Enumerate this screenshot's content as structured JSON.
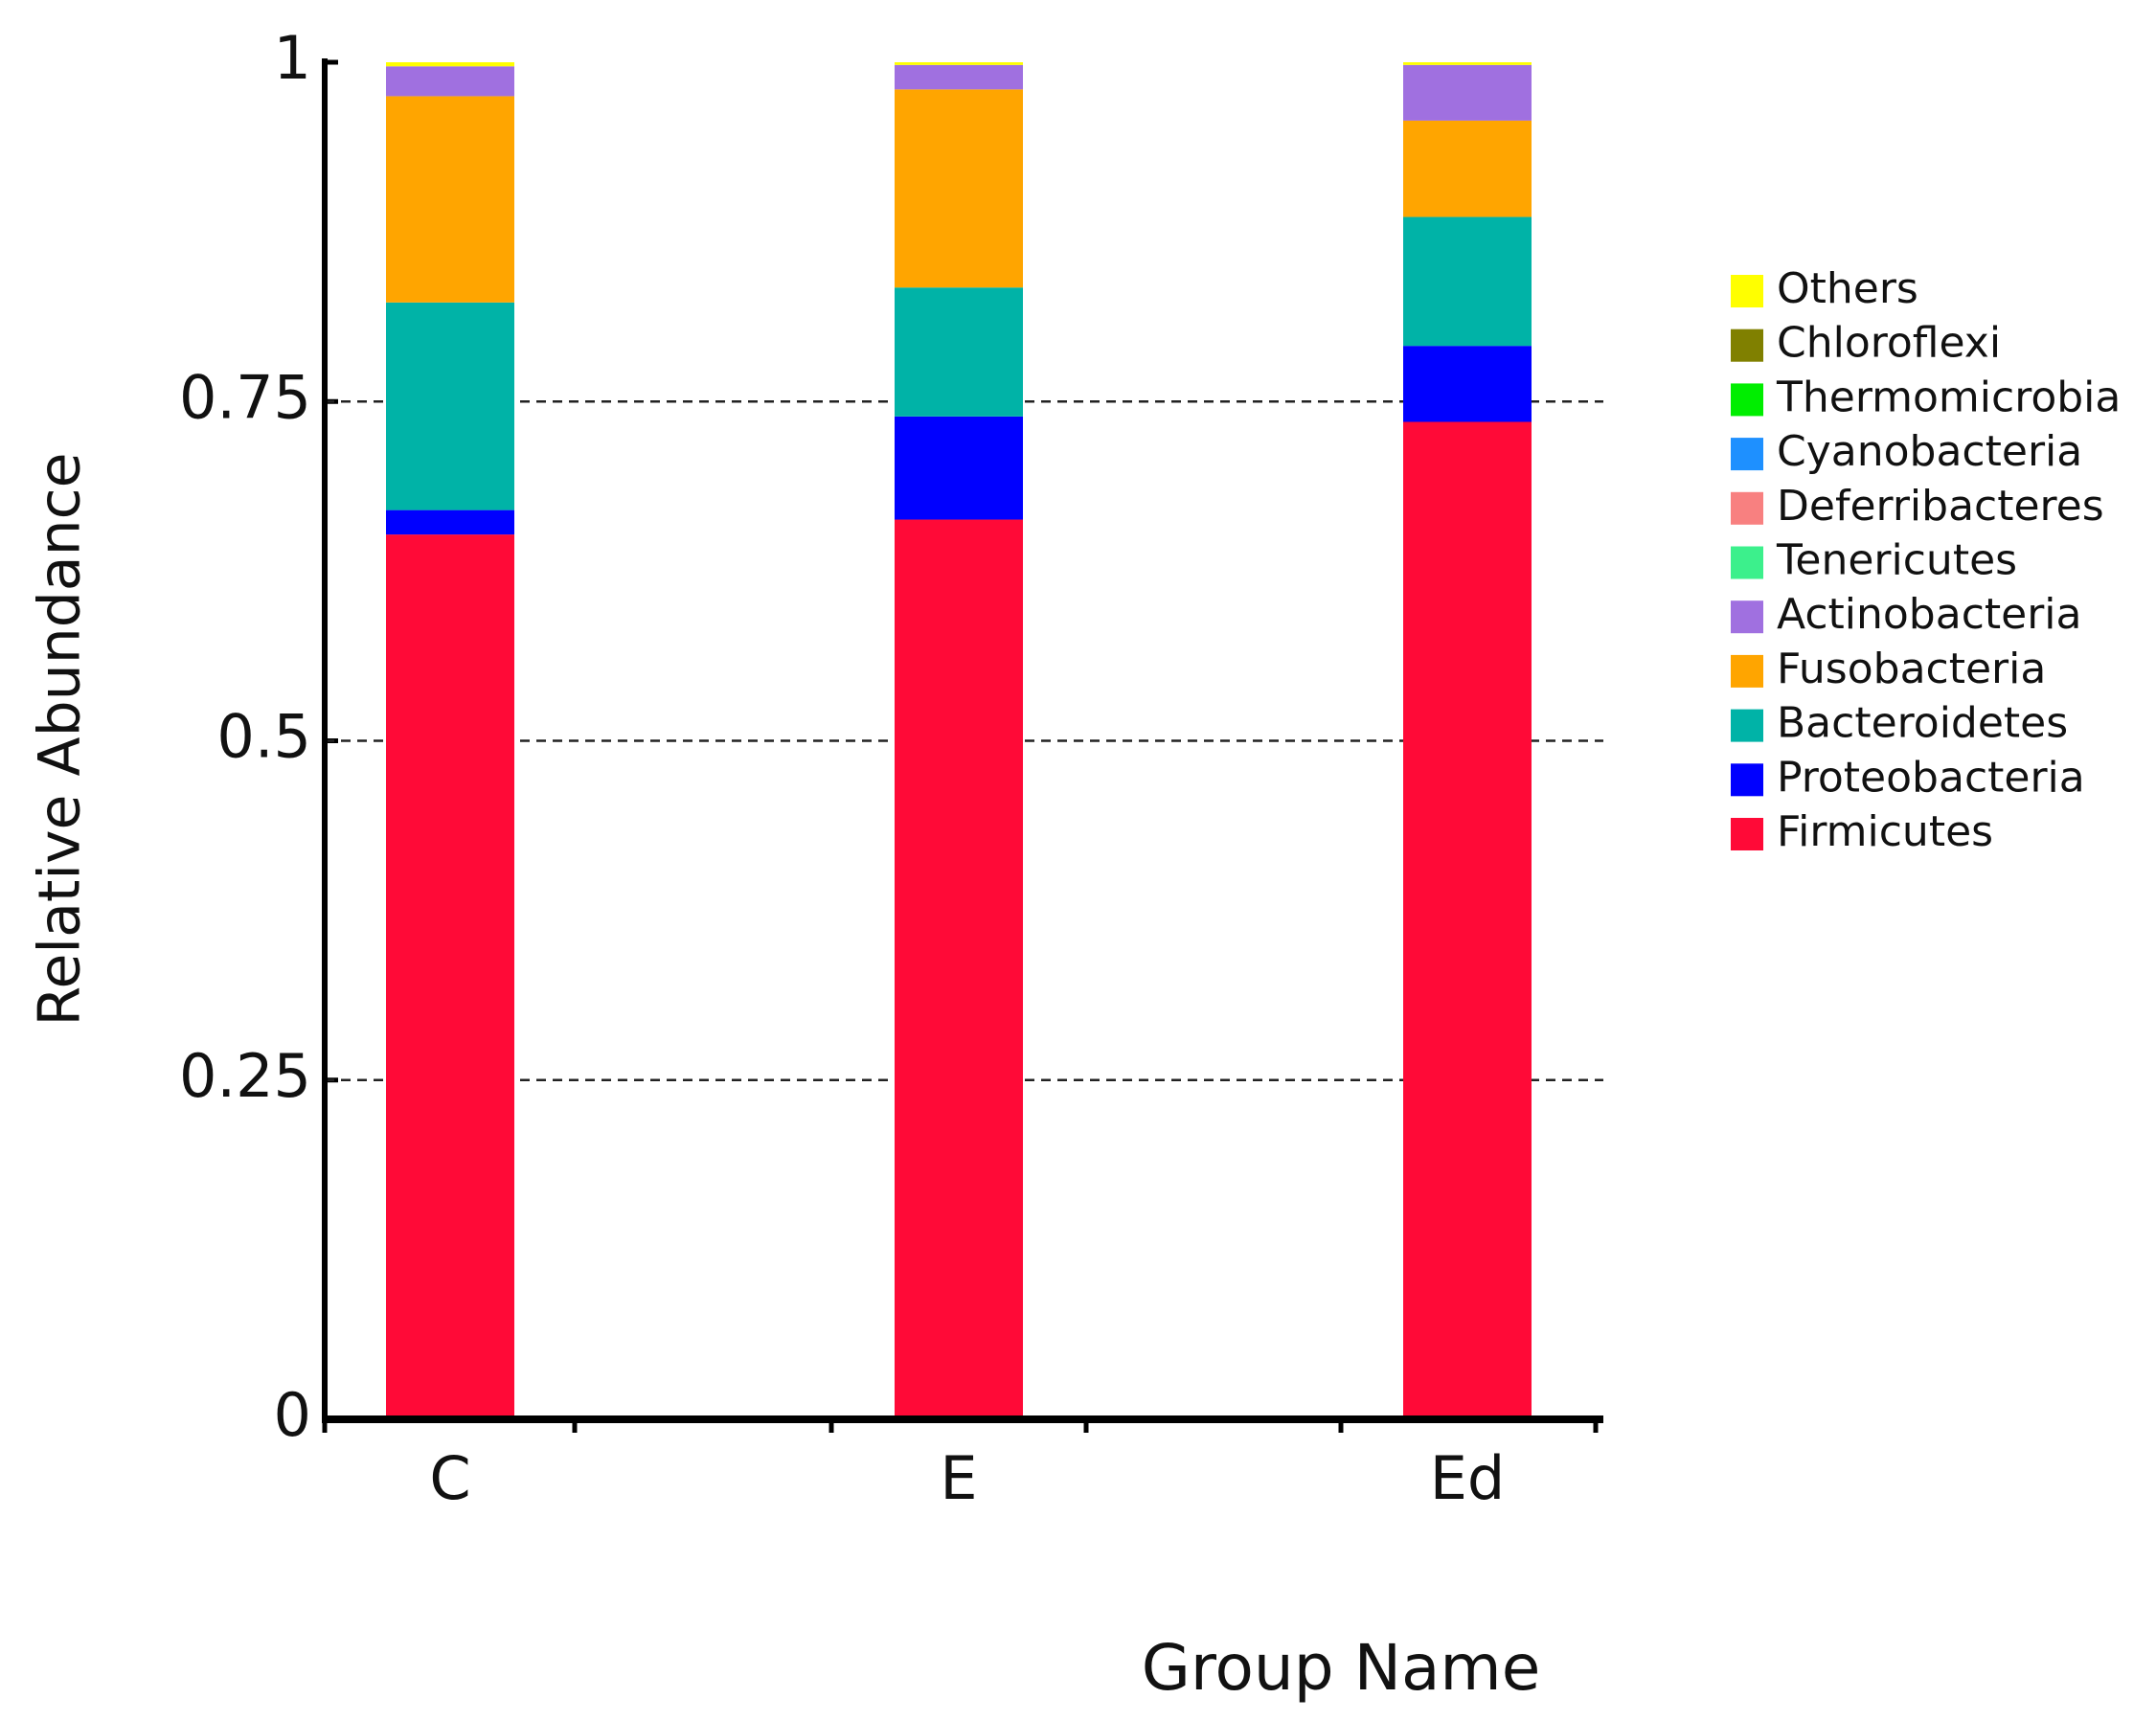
{
  "chart_data": {
    "type": "stacked_bar",
    "x_label": "Group Name",
    "y_label": "Relative Abundance",
    "categories": [
      "C",
      "E",
      "Ed"
    ],
    "series": [
      {
        "name": "Firmicutes",
        "color": "#ff0a37",
        "values": [
          0.652,
          0.663,
          0.735
        ]
      },
      {
        "name": "Proteobacteria",
        "color": "#0000ff",
        "values": [
          0.018,
          0.076,
          0.056
        ]
      },
      {
        "name": "Bacteroidetes",
        "color": "#00b3a7",
        "values": [
          0.153,
          0.095,
          0.095
        ]
      },
      {
        "name": "Fusobacteria",
        "color": "#ffa500",
        "values": [
          0.152,
          0.146,
          0.071
        ]
      },
      {
        "name": "Actinobacteria",
        "color": "#a070e0",
        "values": [
          0.022,
          0.018,
          0.041
        ]
      },
      {
        "name": "Tenericutes",
        "color": "#3cf08c",
        "values": [
          0,
          0,
          0
        ]
      },
      {
        "name": "Deferribacteres",
        "color": "#f88080",
        "values": [
          0,
          0,
          0
        ]
      },
      {
        "name": "Cyanobacteria",
        "color": "#1e90ff",
        "values": [
          0,
          0,
          0
        ]
      },
      {
        "name": "Thermomicrobia",
        "color": "#00ee00",
        "values": [
          0,
          0,
          0
        ]
      },
      {
        "name": "Chloroflexi",
        "color": "#808000",
        "values": [
          0,
          0,
          0
        ]
      },
      {
        "name": "Others",
        "color": "#ffff00",
        "values": [
          0.003,
          0.002,
          0.002
        ]
      }
    ],
    "ylim": [
      0,
      1
    ],
    "yticks": [
      0,
      0.25,
      0.5,
      0.75,
      1
    ],
    "grid": true,
    "legend": "right"
  }
}
